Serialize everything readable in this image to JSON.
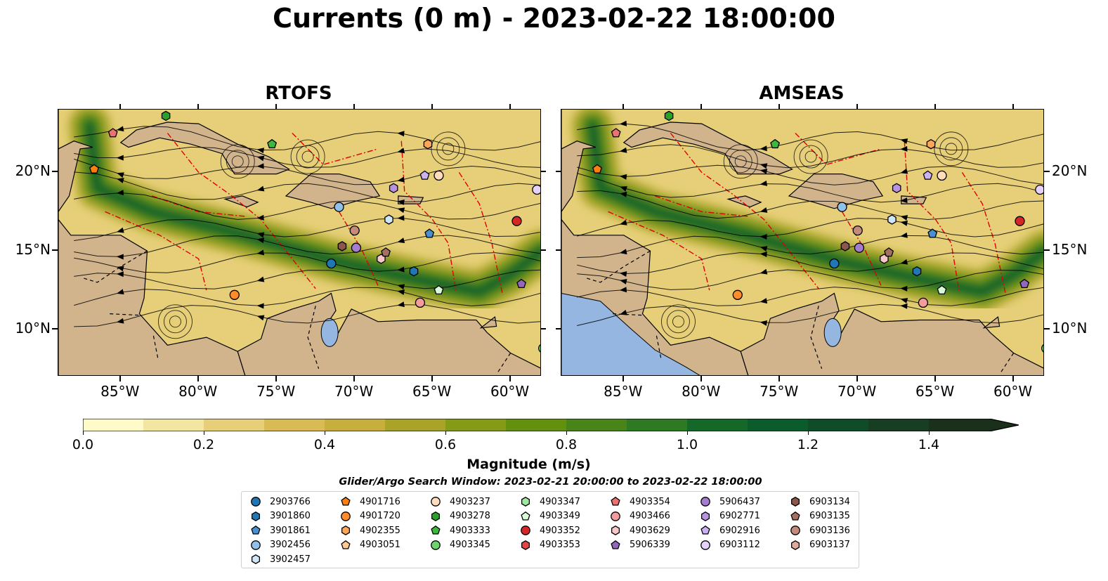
{
  "title": "Currents (0 m) - 2023-02-22 18:00:00",
  "panels": [
    {
      "title": "RTOFS"
    },
    {
      "title": "AMSEAS"
    }
  ],
  "map_extent": {
    "lon": [
      -89,
      -58
    ],
    "lat": [
      7,
      24
    ]
  },
  "x_ticks": [
    {
      "lon": -85,
      "label": "85°W"
    },
    {
      "lon": -80,
      "label": "80°W"
    },
    {
      "lon": -75,
      "label": "75°W"
    },
    {
      "lon": -70,
      "label": "70°W"
    },
    {
      "lon": -65,
      "label": "65°W"
    },
    {
      "lon": -60,
      "label": "60°W"
    }
  ],
  "y_ticks": [
    {
      "lat": 20,
      "label": "20°N"
    },
    {
      "lat": 15,
      "label": "15°N"
    },
    {
      "lat": 10,
      "label": "10°N"
    }
  ],
  "colors": {
    "land": "#d2b48c",
    "water_body": "#94b6e0",
    "eez_lines": "#e00000",
    "colormap": [
      "#fffbc8",
      "#f3e6a1",
      "#e6cf78",
      "#d9bb55",
      "#c8ae3c",
      "#a9a327",
      "#859b16",
      "#63900f",
      "#488418",
      "#2e7a22",
      "#146928",
      "#0b5c2d",
      "#0f4d28",
      "#173d22",
      "#1b301b"
    ]
  },
  "colorbar": {
    "title": "Magnitude (m/s)",
    "min": 0.0,
    "max": 1.5,
    "ticks": [
      "0.0",
      "0.2",
      "0.4",
      "0.6",
      "0.8",
      "1.0",
      "1.2",
      "1.4"
    ],
    "extend": "max"
  },
  "search_window": "Glider/Argo Search Window: 2023-02-21 20:00:00 to 2023-02-22 18:00:00",
  "legend": {
    "columns": [
      [
        {
          "id": "2903766",
          "marker": "circle",
          "color": "#1f77b4"
        },
        {
          "id": "3901860",
          "marker": "hexagon",
          "color": "#1f77b4"
        },
        {
          "id": "3901861",
          "marker": "pentagon",
          "color": "#4a90d0"
        },
        {
          "id": "3902456",
          "marker": "circle",
          "color": "#8fc1ea"
        },
        {
          "id": "3902457",
          "marker": "hexagon",
          "color": "#cfe6f8"
        }
      ],
      [
        {
          "id": "4901716",
          "marker": "pentagon",
          "color": "#ff7f0e"
        },
        {
          "id": "4901720",
          "marker": "circle",
          "color": "#ff8c2a"
        },
        {
          "id": "4902355",
          "marker": "hexagon",
          "color": "#ffa55a"
        },
        {
          "id": "4903051",
          "marker": "pentagon",
          "color": "#ffc890"
        }
      ],
      [
        {
          "id": "4903237",
          "marker": "circle",
          "color": "#ffdcbc"
        },
        {
          "id": "4903278",
          "marker": "hexagon",
          "color": "#2ca02c"
        },
        {
          "id": "4903333",
          "marker": "pentagon",
          "color": "#3cb83c"
        },
        {
          "id": "4903345",
          "marker": "circle",
          "color": "#6cd46c"
        }
      ],
      [
        {
          "id": "4903347",
          "marker": "hexagon",
          "color": "#a0e8a0"
        },
        {
          "id": "4903349",
          "marker": "pentagon",
          "color": "#d8fcd8"
        },
        {
          "id": "4903352",
          "marker": "circle",
          "color": "#d62728"
        },
        {
          "id": "4903353",
          "marker": "hexagon",
          "color": "#e04848"
        }
      ],
      [
        {
          "id": "4903354",
          "marker": "pentagon",
          "color": "#ee7070"
        },
        {
          "id": "4903466",
          "marker": "circle",
          "color": "#f49c9c"
        },
        {
          "id": "4903629",
          "marker": "hexagon",
          "color": "#f8c8c8"
        },
        {
          "id": "5906339",
          "marker": "pentagon",
          "color": "#9467bd"
        }
      ],
      [
        {
          "id": "5906437",
          "marker": "circle",
          "color": "#a57cd0"
        },
        {
          "id": "6902771",
          "marker": "hexagon",
          "color": "#b894e0"
        },
        {
          "id": "6902916",
          "marker": "pentagon",
          "color": "#ccb2ee"
        },
        {
          "id": "6903112",
          "marker": "circle",
          "color": "#e4d2fa"
        }
      ],
      [
        {
          "id": "6903134",
          "marker": "hexagon",
          "color": "#8c564b"
        },
        {
          "id": "6903135",
          "marker": "pentagon",
          "color": "#a4705f"
        },
        {
          "id": "6903136",
          "marker": "circle",
          "color": "#c48a7c"
        },
        {
          "id": "6903137",
          "marker": "hexagon",
          "color": "#e0ab9e"
        }
      ]
    ]
  },
  "floats": [
    {
      "id": "2903766",
      "lon": -71.5,
      "lat": 14.2
    },
    {
      "id": "3901860",
      "lon": -66.2,
      "lat": 13.7
    },
    {
      "id": "3901861",
      "lon": -65.2,
      "lat": 16.1
    },
    {
      "id": "3902456",
      "lon": -71.0,
      "lat": 17.8
    },
    {
      "id": "3902457",
      "lon": -67.8,
      "lat": 17.0
    },
    {
      "id": "4901716",
      "lon": -86.7,
      "lat": 20.2
    },
    {
      "id": "4901720",
      "lon": -77.7,
      "lat": 12.2
    },
    {
      "id": "4902355",
      "lon": -65.3,
      "lat": 21.8
    },
    {
      "id": "4903237",
      "lon": -64.6,
      "lat": 19.8
    },
    {
      "id": "4903278",
      "lon": -82.1,
      "lat": 23.6
    },
    {
      "id": "4903333",
      "lon": -75.3,
      "lat": 21.8
    },
    {
      "id": "4903345",
      "lon": -57.9,
      "lat": 8.8
    },
    {
      "id": "4903347",
      "lon": -57.8,
      "lat": 8.8
    },
    {
      "id": "4903349",
      "lon": -64.6,
      "lat": 12.5
    },
    {
      "id": "4903352",
      "lon": -59.6,
      "lat": 16.9
    },
    {
      "id": "4903354",
      "lon": -85.5,
      "lat": 22.5
    },
    {
      "id": "4903629",
      "lon": -68.3,
      "lat": 14.5
    },
    {
      "id": "4903466",
      "lon": -65.8,
      "lat": 11.7
    },
    {
      "id": "5906339",
      "lon": -59.3,
      "lat": 12.9
    },
    {
      "id": "5906437",
      "lon": -69.9,
      "lat": 15.2
    },
    {
      "id": "6902771",
      "lon": -67.5,
      "lat": 19.0
    },
    {
      "id": "6902916",
      "lon": -65.5,
      "lat": 19.8
    },
    {
      "id": "6903112",
      "lon": -58.3,
      "lat": 18.9
    },
    {
      "id": "6903134",
      "lon": -70.8,
      "lat": 15.3
    },
    {
      "id": "6903135",
      "lon": -68.0,
      "lat": 14.9
    },
    {
      "id": "6903136",
      "lon": -70.0,
      "lat": 16.3
    }
  ]
}
